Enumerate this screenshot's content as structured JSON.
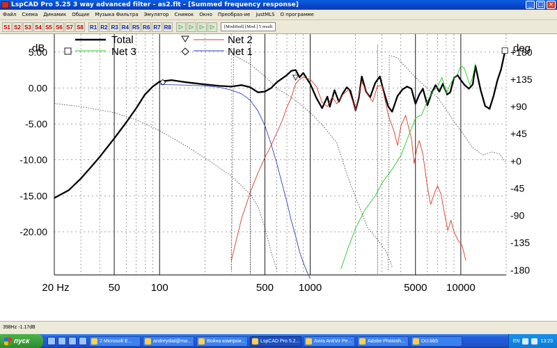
{
  "window": {
    "title": "LspCAD Pro 5.25 3 way advanced filter - as2.flt - [Summed frequency response]"
  },
  "menu": [
    "Файл",
    "Схема",
    "Динамик",
    "Общие",
    "Музыка Фильтра",
    "Эмулятор",
    "Снимок",
    "Окно",
    "Преобраз-ие",
    "justMLS",
    "О программе"
  ],
  "toolbar": {
    "s_buttons": [
      "S1",
      "S2",
      "S3",
      "S4",
      "S5",
      "S6",
      "S7",
      "S8"
    ],
    "r_buttons": [
      "R1",
      "R2",
      "R3",
      "R4",
      "R5",
      "R6",
      "R7",
      "R8"
    ],
    "status_text": "[Modified] [Mod.] 5 result"
  },
  "graph": {
    "left_axis_title": "dB",
    "right_axis_title": "deg",
    "left_ticks": [
      "5.00",
      "0.00",
      "-5.00",
      "-10.00",
      "-15.00",
      "-20.00"
    ],
    "right_ticks": [
      "+180",
      "+135",
      "+90",
      "+45",
      "+0",
      "-45",
      "-90",
      "-135",
      "-180"
    ],
    "x_ticks": [
      "20 Hz",
      "50",
      "100",
      "500",
      "1000",
      "5000",
      "10000"
    ],
    "legend": {
      "total": "Total",
      "net2": "Net 2",
      "net3": "Net 3",
      "net1": "Net 1"
    },
    "colors": {
      "total": "#000000",
      "net1": "#2f3fbf",
      "net2": "#d73a2a",
      "net3": "#22cc22",
      "phase": "#333333"
    }
  },
  "statusbar": {
    "readout": "398Hz -1.17dB"
  },
  "taskbar": {
    "start": "пуск",
    "tasks": [
      "2 Microsoft E...",
      "andreydial@ma...",
      "Война компрои...",
      "LspCAD Pro 5.2...",
      "Avira AntiVir Pe...",
      "Adobe Photosh...",
      "Dct:bb5"
    ],
    "active_index": 3,
    "lang": "EN",
    "clock": "13:23"
  }
}
